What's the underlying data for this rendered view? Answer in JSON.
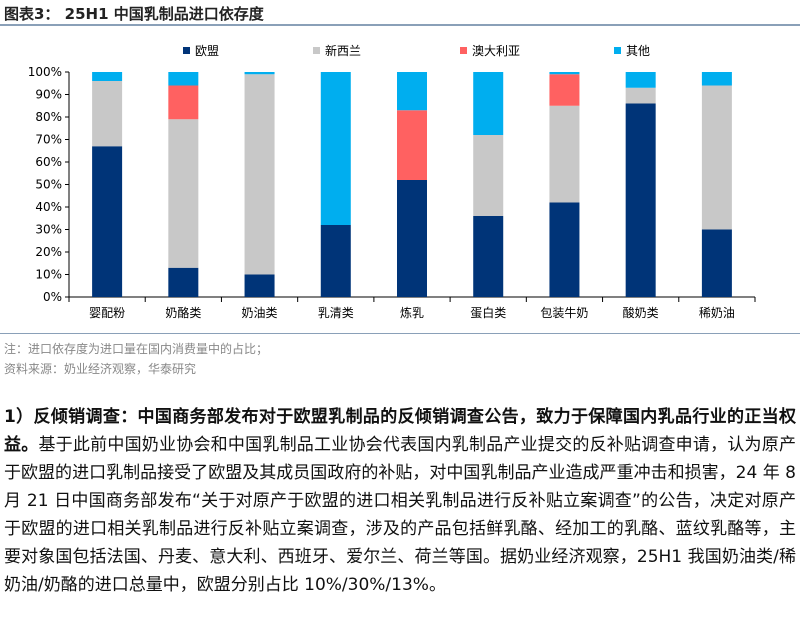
{
  "header": {
    "title": "图表3：  25H1 中国乳制品进口依存度"
  },
  "chart_data": {
    "type": "bar",
    "stacked": true,
    "title": "25H1 中国乳制品进口依存度",
    "categories": [
      "婴配粉",
      "奶酪类",
      "奶油类",
      "乳清类",
      "炼乳",
      "蛋白类",
      "包装牛奶",
      "酸奶类",
      "稀奶油"
    ],
    "series": [
      {
        "name": "欧盟",
        "color": "#003478",
        "values": [
          67,
          13,
          10,
          32,
          52,
          36,
          42,
          86,
          30
        ]
      },
      {
        "name": "新西兰",
        "color": "#c8c8c8",
        "values": [
          29,
          66,
          89,
          0,
          0,
          36,
          43,
          7,
          64
        ]
      },
      {
        "name": "澳大利亚",
        "color": "#ff6161",
        "values": [
          0,
          15,
          0,
          0,
          31,
          0,
          14,
          0,
          0
        ]
      },
      {
        "name": "其他",
        "color": "#00aeef",
        "values": [
          4,
          6,
          1,
          68,
          17,
          28,
          1,
          7,
          6
        ]
      }
    ],
    "yticks": [
      "0%",
      "10%",
      "20%",
      "30%",
      "40%",
      "50%",
      "60%",
      "70%",
      "80%",
      "90%",
      "100%"
    ],
    "ylim": [
      0,
      100
    ],
    "legend": "top"
  },
  "notes": {
    "note": "注：进口依存度为进口量在国内消费量中的占比；",
    "source": "资料来源：奶业经济观察，华泰研究"
  },
  "body": {
    "bold": "1）反倾销调查：中国商务部发布对于欧盟乳制品的反倾销调查公告，致力于保障国内乳品行业的正当权益。",
    "text": "基于此前中国奶业协会和中国乳制品工业协会代表国内乳制品产业提交的反补贴调查申请，认为原产于欧盟的进口乳制品接受了欧盟及其成员国政府的补贴，对中国乳制品产业造成严重冲击和损害，24 年 8 月 21 日中国商务部发布“关于对原产于欧盟的进口相关乳制品进行反补贴立案调查”的公告，决定对原产于欧盟的进口相关乳制品进行反补贴立案调查，涉及的产品包括鲜乳酪、经加工的乳酪、蓝纹乳酪等，主要对象国包括法国、丹麦、意大利、西班牙、爱尔兰、荷兰等国。据奶业经济观察，25H1 我国奶油类/稀奶油/奶酪的进口总量中，欧盟分别占比 10%/30%/13%。"
  }
}
